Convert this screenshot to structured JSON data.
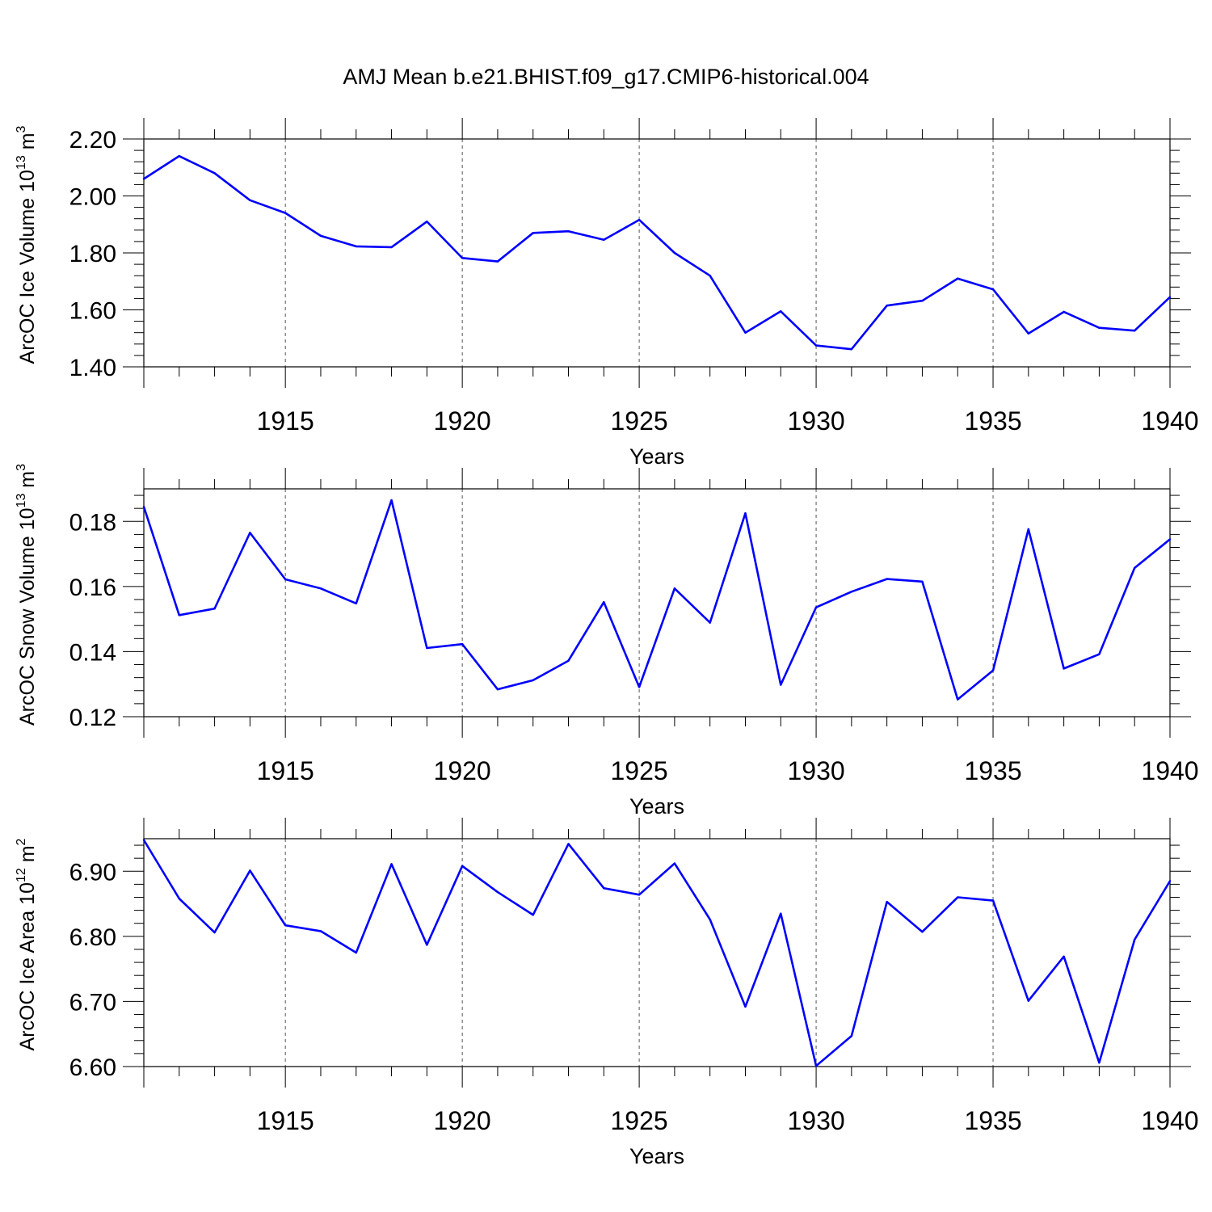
{
  "figure": {
    "title": "AMJ Mean b.e21.BHIST.f09_g17.CMIP6-historical.004"
  },
  "chart_data": [
    {
      "type": "line",
      "title": "AMJ Mean b.e21.BHIST.f09_g17.CMIP6-historical.004",
      "xlabel": "Years",
      "ylabel_main": "ArcOC Ice Volume 10",
      "ylabel_sup": "13",
      "ylabel_tail": " m",
      "ylabel_unit_sup": "3",
      "xlim": [
        1911,
        1940
      ],
      "ylim": [
        1.4,
        2.2
      ],
      "yticks": [
        1.4,
        1.6,
        1.8,
        2.0,
        2.2
      ],
      "ytick_labels": [
        "1.40",
        "1.60",
        "1.80",
        "2.00",
        "2.20"
      ],
      "xticks": [
        1915,
        1920,
        1925,
        1930,
        1935,
        1940
      ],
      "xtick_labels": [
        "1915",
        "1920",
        "1925",
        "1930",
        "1935",
        "1940"
      ],
      "line_color": "#0000ff",
      "series": [
        {
          "name": "Ice Volume",
          "x": [
            1911,
            1912,
            1913,
            1914,
            1915,
            1916,
            1917,
            1918,
            1919,
            1920,
            1921,
            1922,
            1923,
            1924,
            1925,
            1926,
            1927,
            1928,
            1929,
            1930,
            1931,
            1932,
            1933,
            1934,
            1935,
            1936,
            1937,
            1938,
            1939,
            1940
          ],
          "values": [
            2.06,
            2.14,
            2.08,
            1.985,
            1.94,
            1.86,
            1.823,
            1.82,
            1.91,
            1.782,
            1.77,
            1.87,
            1.876,
            1.846,
            1.916,
            1.8,
            1.72,
            1.52,
            1.595,
            1.475,
            1.462,
            1.615,
            1.632,
            1.71,
            1.672,
            1.517,
            1.593,
            1.537,
            1.527,
            1.645
          ]
        }
      ]
    },
    {
      "type": "line",
      "xlabel": "Years",
      "ylabel_main": "ArcOC Snow Volume 10",
      "ylabel_sup": "13",
      "ylabel_tail": " m",
      "ylabel_unit_sup": "3",
      "xlim": [
        1911,
        1940
      ],
      "ylim": [
        0.12,
        0.19
      ],
      "yticks": [
        0.12,
        0.14,
        0.16,
        0.18
      ],
      "ytick_labels": [
        "0.12",
        "0.14",
        "0.16",
        "0.18"
      ],
      "xticks": [
        1915,
        1920,
        1925,
        1930,
        1935,
        1940
      ],
      "xtick_labels": [
        "1915",
        "1920",
        "1925",
        "1930",
        "1935",
        "1940"
      ],
      "line_color": "#0000ff",
      "series": [
        {
          "name": "Snow Volume",
          "x": [
            1911,
            1912,
            1913,
            1914,
            1915,
            1916,
            1917,
            1918,
            1919,
            1920,
            1921,
            1922,
            1923,
            1924,
            1925,
            1926,
            1927,
            1928,
            1929,
            1930,
            1931,
            1932,
            1933,
            1934,
            1935,
            1936,
            1937,
            1938,
            1939,
            1940
          ],
          "values": [
            0.1845,
            0.1512,
            0.1532,
            0.1765,
            0.1622,
            0.1594,
            0.1548,
            0.1865,
            0.1411,
            0.1423,
            0.1284,
            0.1312,
            0.1372,
            0.1552,
            0.1291,
            0.1594,
            0.1489,
            0.1825,
            0.1298,
            0.1536,
            0.1584,
            0.1623,
            0.1615,
            0.1253,
            0.1342,
            0.1776,
            0.1348,
            0.1392,
            0.1657,
            0.1745
          ]
        }
      ]
    },
    {
      "type": "line",
      "xlabel": "Years",
      "ylabel_main": "ArcOC Ice Area 10",
      "ylabel_sup": "12",
      "ylabel_tail": " m",
      "ylabel_unit_sup": "2",
      "xlim": [
        1911,
        1940
      ],
      "ylim": [
        6.6,
        6.95
      ],
      "yticks": [
        6.6,
        6.7,
        6.8,
        6.9
      ],
      "ytick_labels": [
        "6.60",
        "6.70",
        "6.80",
        "6.90"
      ],
      "xticks": [
        1915,
        1920,
        1925,
        1930,
        1935,
        1940
      ],
      "xtick_labels": [
        "1915",
        "1920",
        "1925",
        "1930",
        "1935",
        "1940"
      ],
      "line_color": "#0000ff",
      "series": [
        {
          "name": "Ice Area",
          "x": [
            1911,
            1912,
            1913,
            1914,
            1915,
            1916,
            1917,
            1918,
            1919,
            1920,
            1921,
            1922,
            1923,
            1924,
            1925,
            1926,
            1927,
            1928,
            1929,
            1930,
            1931,
            1932,
            1933,
            1934,
            1935,
            1936,
            1937,
            1938,
            1939,
            1940
          ],
          "values": [
            6.948,
            6.858,
            6.806,
            6.901,
            6.817,
            6.808,
            6.775,
            6.911,
            6.787,
            6.908,
            6.868,
            6.833,
            6.942,
            6.874,
            6.864,
            6.912,
            6.826,
            6.692,
            6.835,
            6.601,
            6.647,
            6.853,
            6.807,
            6.86,
            6.855,
            6.701,
            6.769,
            6.606,
            6.795,
            6.885
          ]
        }
      ]
    }
  ]
}
